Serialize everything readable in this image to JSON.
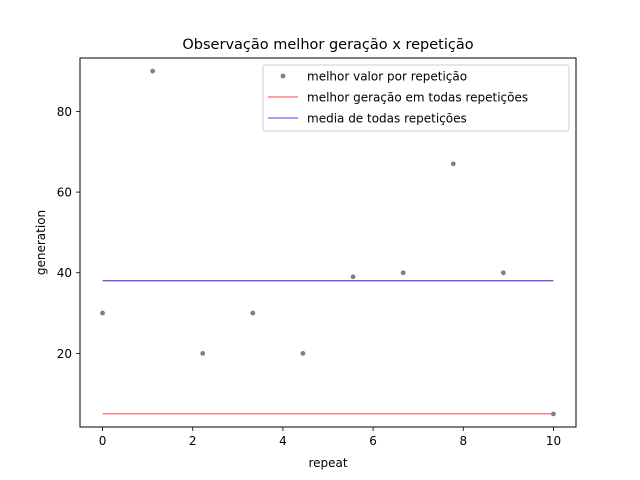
{
  "chart_data": {
    "type": "scatter",
    "title": "Observação melhor geração x repetição",
    "xlabel": "repeat",
    "ylabel": "generation",
    "xlim": [
      -0.5,
      10.5
    ],
    "ylim": [
      1.75,
      93.25
    ],
    "xticks": [
      0,
      2,
      4,
      6,
      8,
      10
    ],
    "yticks": [
      20,
      40,
      60,
      80
    ],
    "grid": false,
    "legend_position": "top-right",
    "series": [
      {
        "name": "melhor valor por repetição",
        "kind": "points",
        "color": "#808080",
        "x": [
          0,
          1.111,
          2.222,
          3.333,
          4.444,
          5.556,
          6.667,
          7.778,
          8.889,
          10
        ],
        "y": [
          30,
          90,
          20,
          30,
          20,
          39,
          40,
          67,
          40,
          5
        ]
      },
      {
        "name": "melhor geração em todas repetições",
        "kind": "line",
        "color": "#ff0000",
        "x": [
          0,
          10
        ],
        "y": [
          5,
          5
        ]
      },
      {
        "name": "media de todas repetições",
        "kind": "line",
        "color": "#0000ff",
        "x": [
          0,
          10
        ],
        "y": [
          38,
          38
        ]
      }
    ]
  }
}
